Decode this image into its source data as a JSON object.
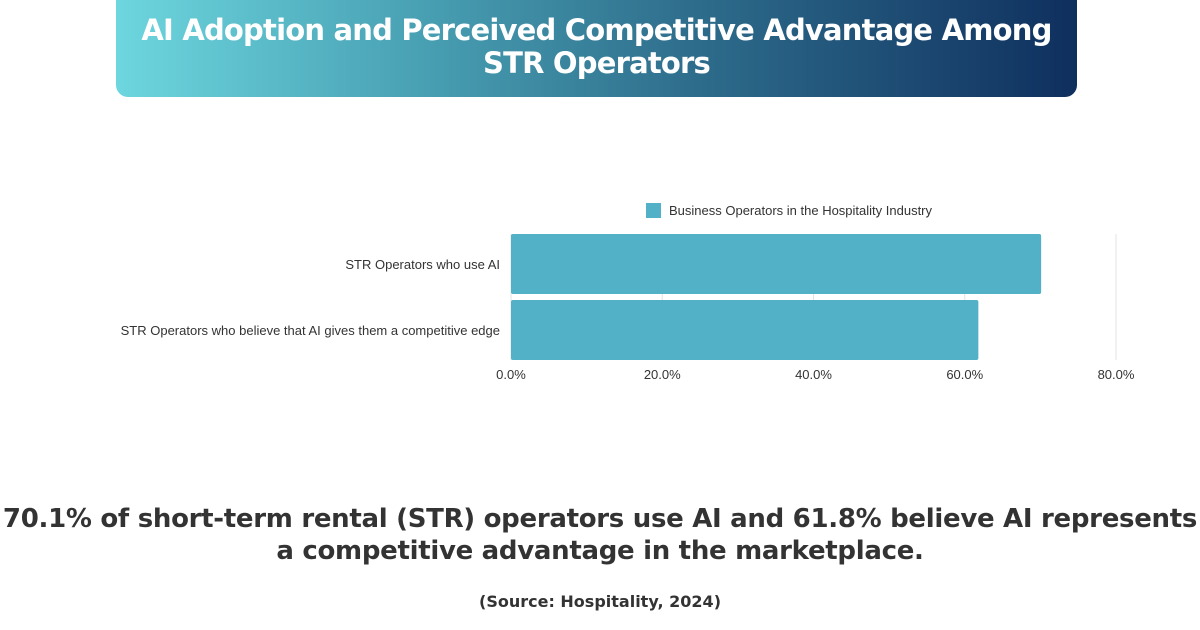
{
  "chart_data": {
    "type": "bar",
    "orientation": "horizontal",
    "title": "AI Adoption and Perceived Competitive Advantage Among STR Operators",
    "categories": [
      "STR Operators who use AI",
      "STR Operators who believe that AI gives them a competitive edge"
    ],
    "series": [
      {
        "name": "Business Operators in the Hospitality Industry",
        "values": [
          70.1,
          61.8
        ],
        "color": "#52b1c6"
      }
    ],
    "xlim": [
      0,
      80
    ],
    "xticks": [
      0,
      20,
      40,
      60,
      80
    ],
    "xtick_labels": [
      "0.0%",
      "20.0%",
      "40.0%",
      "60.0%",
      "80.0%"
    ],
    "legend": "top",
    "grid": true
  },
  "summary": "70.1% of short-term rental (STR) operators use AI and 61.8% believe AI represents a competitive advantage in the marketplace.",
  "source": "(Source: Hospitality, 2024)"
}
